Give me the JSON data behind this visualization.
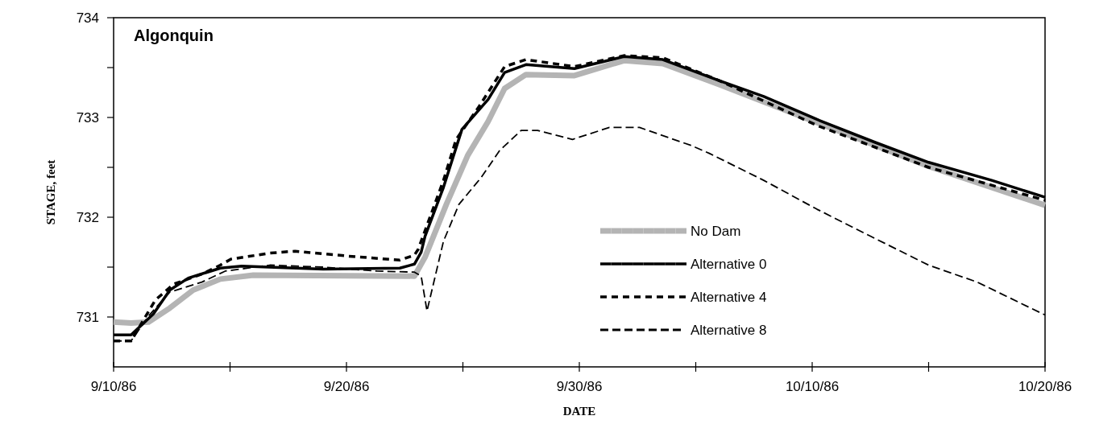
{
  "chart_data": {
    "type": "line",
    "title": "Algonquin",
    "xlabel": "DATE",
    "ylabel": "STAGE, feet",
    "xlim": [
      "1986-09-10",
      "1986-10-20"
    ],
    "xticks": [
      {
        "value": "1986-09-10",
        "label": "9/10/86"
      },
      {
        "value": "1986-09-15",
        "label": null
      },
      {
        "value": "1986-09-20",
        "label": "9/20/86"
      },
      {
        "value": "1986-09-25",
        "label": null
      },
      {
        "value": "1986-09-30",
        "label": "9/30/86"
      },
      {
        "value": "1986-10-05",
        "label": null
      },
      {
        "value": "1986-10-10",
        "label": "10/10/86"
      },
      {
        "value": "1986-10-15",
        "label": null
      },
      {
        "value": "1986-10-20",
        "label": "10/20/86"
      }
    ],
    "ylim": [
      730.5,
      734
    ],
    "yticks": [
      731,
      {
        "value": 731.5,
        "label": null
      },
      732,
      {
        "value": 732.5,
        "label": null
      },
      733,
      {
        "value": 733.5,
        "label": null
      },
      734
    ],
    "grid": false,
    "legend": "bottom",
    "series": [
      {
        "name": "No Dam",
        "color": "#b4b4b4",
        "line_style": "solid",
        "x": [
          "1986-09-10T00:00",
          "1986-09-10T18:00",
          "1986-09-11T12:00",
          "1986-09-12T10:00",
          "1986-09-13T10:00",
          "1986-09-14T14:00",
          "1986-09-16T00:00",
          "1986-09-22T22:00",
          "1986-09-23T09:00",
          "1986-09-24T07:00",
          "1986-09-25T05:00",
          "1986-09-26T02:00",
          "1986-09-26T19:00",
          "1986-09-27T17:00",
          "1986-09-29T19:00",
          "1986-10-01T22:00",
          "1986-10-03T14:00",
          "1986-10-06T00:00",
          "1986-10-10T05:00",
          "1986-10-15T00:00",
          "1986-10-20T00:00"
        ],
        "values": [
          730.95,
          730.94,
          730.95,
          731.09,
          731.27,
          731.38,
          731.42,
          731.41,
          731.6,
          732.13,
          732.62,
          732.96,
          733.29,
          733.43,
          733.42,
          733.57,
          733.54,
          733.33,
          732.95,
          732.51,
          732.12
        ]
      },
      {
        "name": "Alternative 0",
        "color": "#000000",
        "line_style": "solid",
        "x": [
          "1986-09-10T00:00",
          "1986-09-10T18:00",
          "1986-09-11T17:00",
          "1986-09-12T10:00",
          "1986-09-13T05:00",
          "1986-09-14T14:00",
          "1986-09-15T12:00",
          "1986-09-19T00:00",
          "1986-09-22T07:00",
          "1986-09-22T22:00",
          "1986-09-23T05:00",
          "1986-09-23T09:00",
          "1986-09-24T04:00",
          "1986-09-24T23:00",
          "1986-09-25T16:00",
          "1986-09-26T02:00",
          "1986-09-26T19:00",
          "1986-09-27T17:00",
          "1986-09-29T19:00",
          "1986-10-01T22:00",
          "1986-10-03T14:00",
          "1986-10-06T00:00",
          "1986-10-07T22:00",
          "1986-10-10T05:00",
          "1986-10-12T17:00",
          "1986-10-15T00:00",
          "1986-10-17T17:00",
          "1986-10-20T00:00"
        ],
        "values": [
          730.82,
          730.82,
          731.03,
          731.27,
          731.39,
          731.49,
          731.51,
          731.48,
          731.49,
          731.53,
          731.65,
          731.81,
          732.3,
          732.88,
          733.07,
          733.18,
          733.45,
          733.53,
          733.49,
          733.61,
          733.58,
          733.37,
          733.21,
          732.98,
          732.75,
          732.55,
          732.37,
          732.2
        ]
      },
      {
        "name": "Alternative 4",
        "color": "#000000",
        "line_style": "dashed",
        "x": [
          "1986-09-10T00:00",
          "1986-09-10T18:00",
          "1986-09-11T19:00",
          "1986-09-12T14:00",
          "1986-09-13T19:00",
          "1986-09-14T14:00",
          "1986-09-15T01:00",
          "1986-09-16T17:00",
          "1986-09-17T19:00",
          "1986-09-20T02:00",
          "1986-09-22T07:00",
          "1986-09-22T22:00",
          "1986-09-23T02:00",
          "1986-09-24T04:00",
          "1986-09-24T17:00",
          "1986-09-25T16:00",
          "1986-09-26T19:00",
          "1986-09-27T17:00",
          "1986-09-29T19:00",
          "1986-10-01T22:00",
          "1986-10-03T14:00",
          "1986-10-06T00:00",
          "1986-10-10T05:00",
          "1986-10-15T00:00",
          "1986-10-20T00:00"
        ],
        "values": [
          730.76,
          730.76,
          731.17,
          731.33,
          731.43,
          731.52,
          731.58,
          731.64,
          731.66,
          731.61,
          731.57,
          731.62,
          731.68,
          732.37,
          732.78,
          733.1,
          733.51,
          733.58,
          733.51,
          733.62,
          733.6,
          733.37,
          732.92,
          732.5,
          732.17
        ]
      },
      {
        "name": "Alternative 8",
        "color": "#000000",
        "line_style": "dashed",
        "x": [
          "1986-09-10T00:00",
          "1986-09-10T18:00",
          "1986-09-11T12:00",
          "1986-09-12T10:00",
          "1986-09-13T19:00",
          "1986-09-14T19:00",
          "1986-09-16T17:00",
          "1986-09-19T00:00",
          "1986-09-21T07:00",
          "1986-09-22T22:00",
          "1986-09-23T05:00",
          "1986-09-23T11:00",
          "1986-09-24T04:00",
          "1986-09-24T20:00",
          "1986-09-25T19:00",
          "1986-09-26T14:00",
          "1986-09-27T12:00",
          "1986-09-28T05:00",
          "1986-09-29T17:00",
          "1986-10-01T07:00",
          "1986-10-02T14:00",
          "1986-10-04T19:00",
          "1986-10-05T14:00",
          "1986-10-07T22:00",
          "1986-10-10T05:00",
          "1986-10-12T12:00",
          "1986-10-15T00:00",
          "1986-10-17T02:00",
          "1986-10-20T00:00"
        ],
        "values": [
          730.76,
          730.76,
          731.01,
          731.25,
          731.35,
          731.46,
          731.52,
          731.5,
          731.46,
          731.45,
          731.41,
          731.06,
          731.76,
          732.13,
          732.4,
          732.67,
          732.87,
          732.87,
          732.78,
          732.9,
          732.9,
          732.72,
          732.64,
          732.37,
          732.08,
          731.81,
          731.52,
          731.35,
          731.02
        ]
      }
    ]
  }
}
